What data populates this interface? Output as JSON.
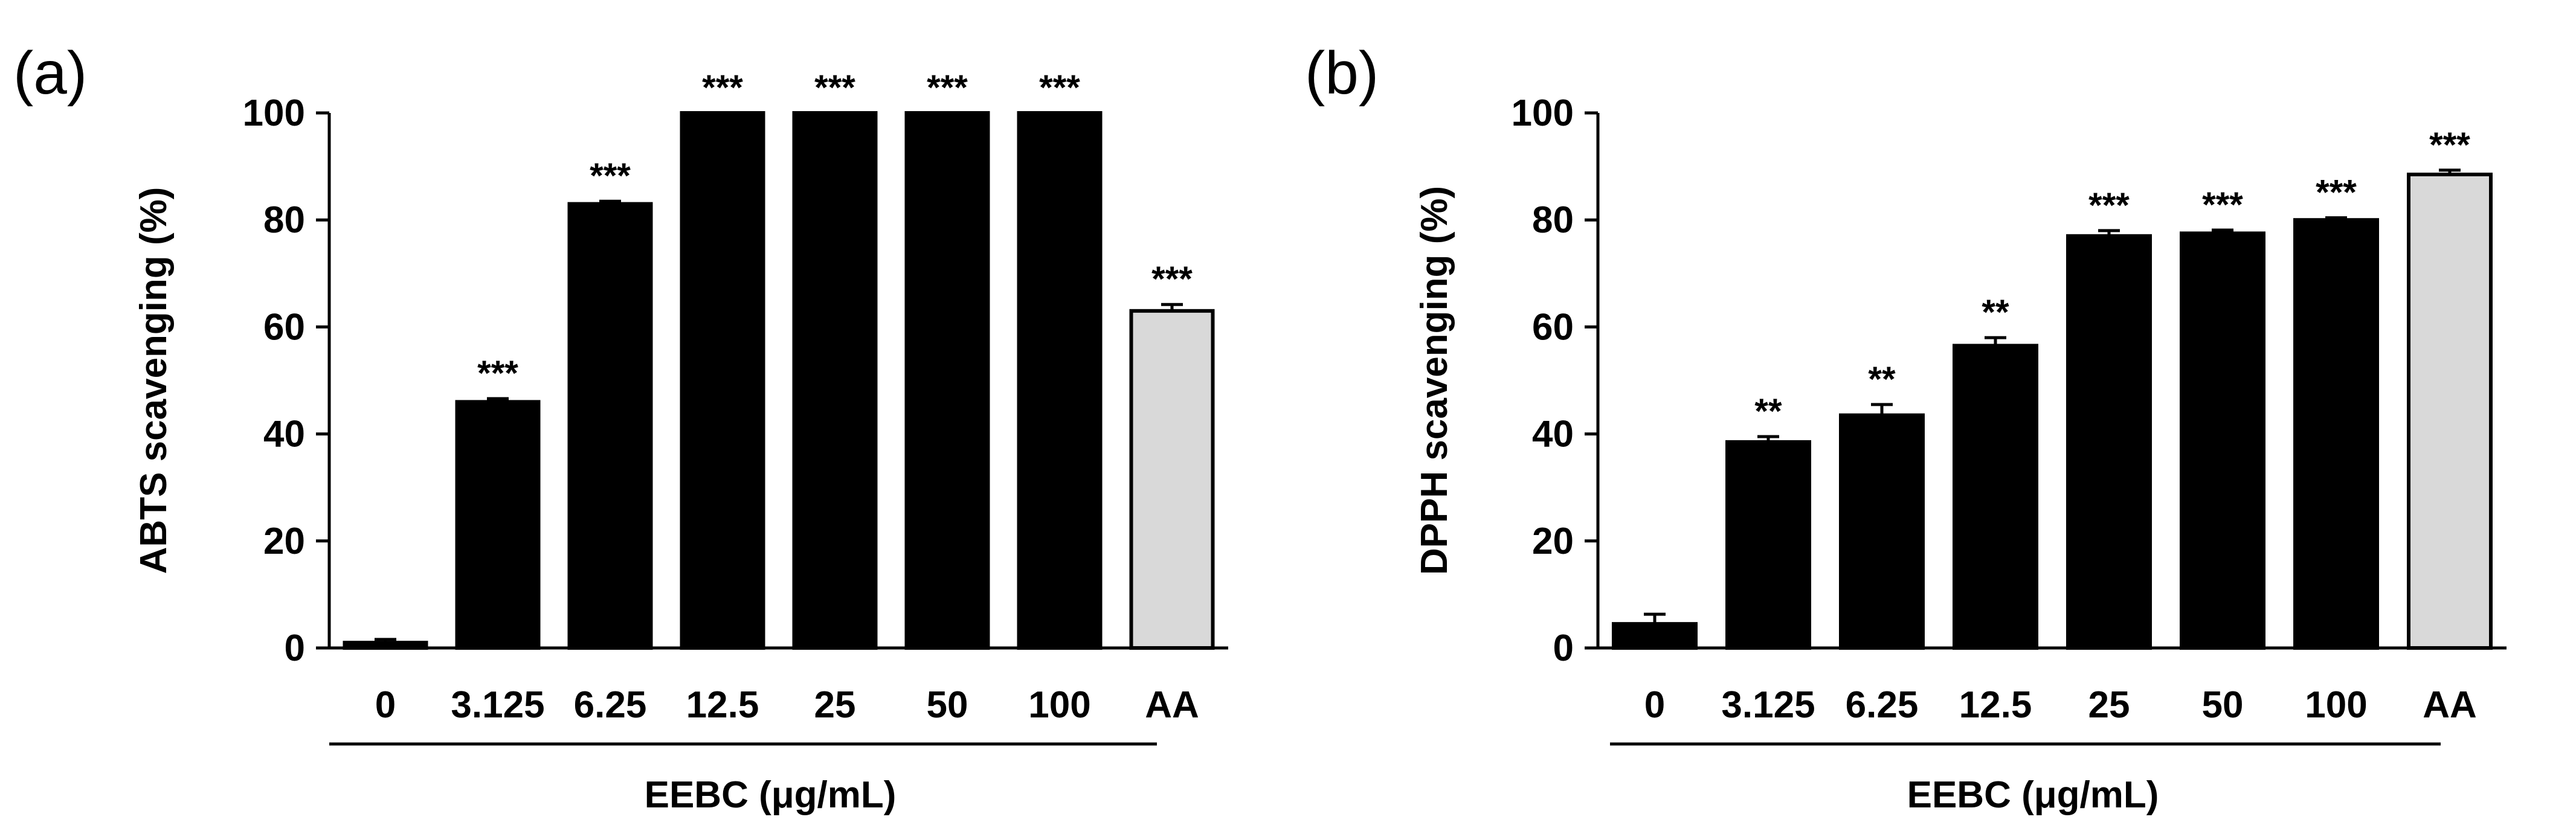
{
  "chart_data": [
    {
      "type": "bar",
      "panel_label": "(a)",
      "ylabel": "ABTS scavenging (%)",
      "xlabel": "EEBC (μg/mL)",
      "group_label_covers": [
        "0",
        "3.125",
        "6.25",
        "12.5",
        "25",
        "50",
        "100"
      ],
      "ylim": [
        0,
        100
      ],
      "yticks": [
        "0",
        "20",
        "40",
        "60",
        "80",
        "100"
      ],
      "categories": [
        "0",
        "3.125",
        "6.25",
        "12.5",
        "25",
        "50",
        "100",
        "AA"
      ],
      "values": [
        1,
        46,
        83,
        100,
        100,
        100,
        100,
        63
      ],
      "errors": [
        0.6,
        0.6,
        0.5,
        0,
        0,
        0,
        0,
        1.2
      ],
      "significance": [
        "",
        "***",
        "***",
        "***",
        "***",
        "***",
        "***",
        "***"
      ],
      "bar_colors": [
        "#000000",
        "#000000",
        "#000000",
        "#000000",
        "#000000",
        "#000000",
        "#000000",
        "#d9d9d9"
      ]
    },
    {
      "type": "bar",
      "panel_label": "(b)",
      "ylabel": "DPPH scavenging (%)",
      "xlabel": "EEBC (μg/mL)",
      "group_label_covers": [
        "0",
        "3.125",
        "6.25",
        "12.5",
        "25",
        "50",
        "100"
      ],
      "ylim": [
        0,
        100
      ],
      "yticks": [
        "0",
        "20",
        "40",
        "60",
        "80",
        "100"
      ],
      "categories": [
        "0",
        "3.125",
        "6.25",
        "12.5",
        "25",
        "50",
        "100",
        "AA"
      ],
      "values": [
        4.5,
        38.5,
        43.5,
        56.5,
        77,
        77.5,
        80,
        88.5
      ],
      "errors": [
        1.8,
        1.0,
        2.0,
        1.5,
        1.0,
        0.6,
        0.4,
        0.8
      ],
      "significance": [
        "",
        "**",
        "**",
        "**",
        "***",
        "***",
        "***",
        "***"
      ],
      "bar_colors": [
        "#000000",
        "#000000",
        "#000000",
        "#000000",
        "#000000",
        "#000000",
        "#000000",
        "#d9d9d9"
      ]
    }
  ]
}
